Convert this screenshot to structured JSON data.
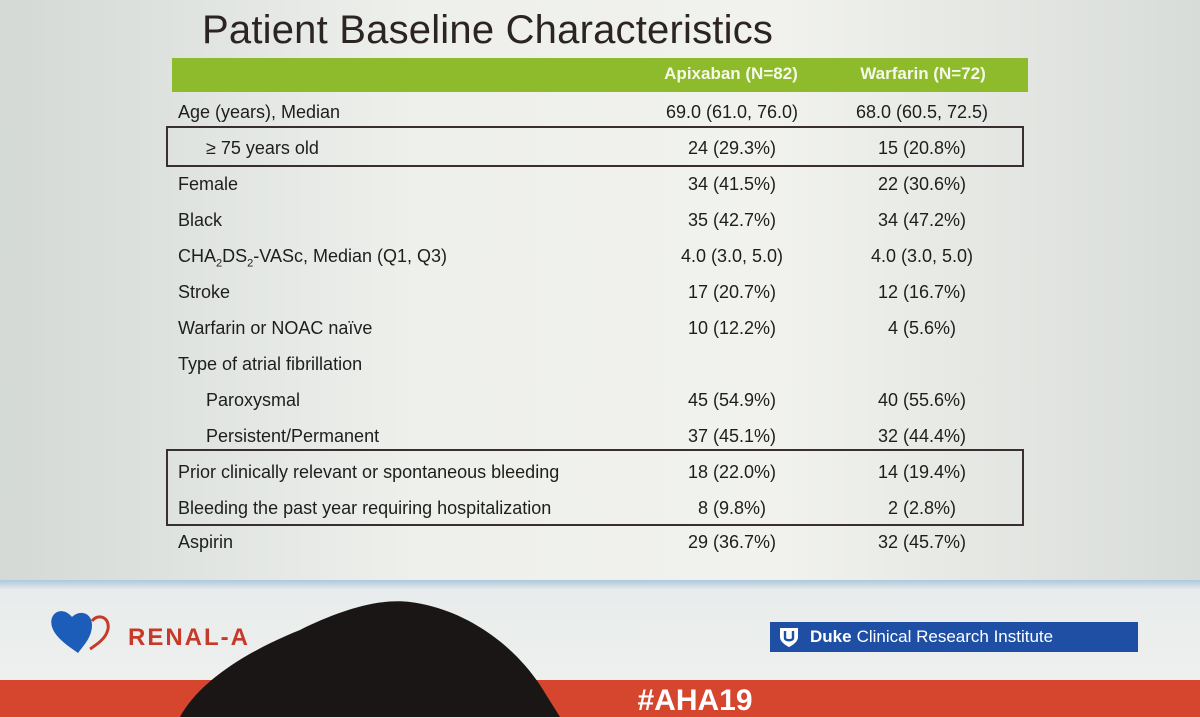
{
  "slide": {
    "title": "Patient Baseline Characteristics",
    "columns": [
      "",
      "Apixaban (N=82)",
      "Warfarin (N=72)"
    ],
    "rows": [
      {
        "label": "Age (years), Median",
        "apixaban": "69.0 (61.0, 76.0)",
        "warfarin": "68.0 (60.5, 72.5)"
      },
      {
        "label": "≥ 75 years old",
        "apixaban": "24 (29.3%)",
        "warfarin": "15 (20.8%)"
      },
      {
        "label": "Female",
        "apixaban": "34 (41.5%)",
        "warfarin": "22 (30.6%)"
      },
      {
        "label": "Black",
        "apixaban": "35 (42.7%)",
        "warfarin": "34 (47.2%)"
      },
      {
        "label_pre": "CHA",
        "label_sub1": "2",
        "label_mid": "DS",
        "label_sub2": "2",
        "label_post": "-VASc, Median (Q1, Q3)",
        "apixaban": "4.0 (3.0, 5.0)",
        "warfarin": "4.0 (3.0, 5.0)"
      },
      {
        "label": "Stroke",
        "apixaban": "17 (20.7%)",
        "warfarin": "12 (16.7%)"
      },
      {
        "label": "Warfarin or NOAC naïve",
        "apixaban": "10 (12.2%)",
        "warfarin": "4 (5.6%)"
      },
      {
        "label": "Type of atrial fibrillation",
        "apixaban": "",
        "warfarin": ""
      },
      {
        "label": "Paroxysmal",
        "apixaban": "45 (54.9%)",
        "warfarin": "40 (55.6%)"
      },
      {
        "label": "Persistent/Permanent",
        "apixaban": "37 (45.1%)",
        "warfarin": "32 (44.4%)"
      },
      {
        "label": "Prior clinically relevant or spontaneous bleeding",
        "apixaban": "18 (22.0%)",
        "warfarin": "14 (19.4%)"
      },
      {
        "label": "Bleeding the past year requiring hospitalization",
        "apixaban": "8 (9.8%)",
        "warfarin": "2 (2.8%)"
      },
      {
        "label": "Aspirin",
        "apixaban": "29 (36.7%)",
        "warfarin": "32 (45.7%)"
      }
    ]
  },
  "footer": {
    "trial_logo_text": "RENAL-A",
    "institute_bold": "Duke",
    "institute_rest": "Clinical Research Institute",
    "hashtag": "#AHA19"
  },
  "colors": {
    "header_green": "#8dbb2b",
    "title_text": "#2c2424",
    "renal_red": "#c73a2a",
    "duke_blue": "#1e4fa5",
    "footer_red": "#d6452e"
  },
  "icons": [
    "renal-heart-logo-icon",
    "duke-shield-icon"
  ]
}
